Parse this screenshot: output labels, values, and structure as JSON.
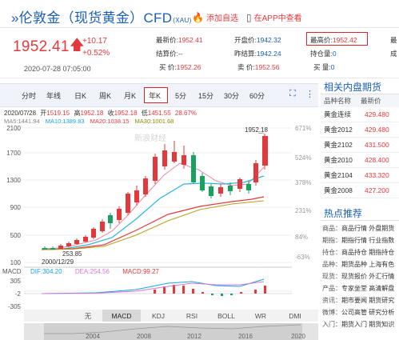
{
  "header": {
    "title": "»伦敦金（现货黄金）CFD",
    "title_sub": "(XAU)",
    "add_watch": "添加自选",
    "open_app": "在APP中查看"
  },
  "quote": {
    "price": "1952.41",
    "change": "+10.17",
    "change_pct": "+0.52%",
    "datetime": "2020-07-28 07:05:00",
    "fields": {
      "latest_label": "最新价:",
      "latest": "1952.41",
      "open_label": "开盘价:",
      "open": "1942.32",
      "high_label": "最高价:",
      "high": "1952.42",
      "settle_label": "结算价:",
      "settle": "--",
      "prev_settle_label": "昨结算:",
      "prev_settle": "1942.24",
      "position_label": "持仓量:",
      "position": "0",
      "buy_label": "买 价:",
      "buy": "1952.26",
      "sell_label": "卖 价:",
      "sell": "1952.56",
      "buy_vol_label": "买 量:",
      "buy_vol": "0",
      "cut_a": "最",
      "cut_b": "成"
    }
  },
  "tabs": [
    "分时",
    "年线",
    "日K",
    "周K",
    "月K",
    "年K",
    "5分",
    "15分",
    "30分",
    "60分"
  ],
  "chart_info": {
    "date": "2020/07/28",
    "open_label": "开",
    "open": "1519.15",
    "high_label": "高",
    "high": "1952.18",
    "low_label": "收",
    "low": "1952.18",
    "close_label": "低",
    "close": "1451.55",
    "pct": "28.67%",
    "ma5_label": "MA5:",
    "ma5": "1441.94",
    "ma10_label": "MA10:",
    "ma10": "1389.83",
    "ma20_label": "MA20:",
    "ma20": "1038.15",
    "ma30_label": "MA30:",
    "ma30": "1001.68",
    "y_ticks": [
      "2100",
      "1700",
      "1300",
      "900",
      "500",
      "100"
    ],
    "pct_ticks": [
      "671%",
      "524%",
      "378%",
      "231%",
      "84%",
      "-63%"
    ],
    "max_label": "1952.18",
    "min_label": "253.85",
    "min_date": "2000/12/29",
    "watermark": "新浪财经",
    "macd_title": "MACD",
    "dif_label": "DIF:",
    "dif": "304.20",
    "dea_label": "DEA:",
    "dea": "254.56",
    "macd_label": "MACD:",
    "macd": "99.27",
    "macd_ticks": [
      "305",
      "-2",
      "-305"
    ],
    "indicator_tabs": [
      "无",
      "MACD",
      "KDJ",
      "RSI",
      "BOLL",
      "WR",
      "DMI"
    ],
    "years": [
      "2004",
      "2008",
      "2012",
      "2016",
      "2020"
    ]
  },
  "right_panel": {
    "title": "相关内盘期货",
    "col_name": "品种名称",
    "col_price": "最新价",
    "rows": [
      {
        "name": "黄金连续",
        "price": "429.480"
      },
      {
        "name": "黄金2012",
        "price": "429.480"
      },
      {
        "name": "黄金2102",
        "price": "431.500"
      },
      {
        "name": "黄金2010",
        "price": "428.400"
      },
      {
        "name": "黄金2104",
        "price": "433.320"
      },
      {
        "name": "黄金2008",
        "price": "427.200"
      }
    ],
    "hot_title": "热点推荐",
    "hot": [
      {
        "k": "商品：",
        "v": "商品行情 外盘期货"
      },
      {
        "k": "期指：",
        "v": "期指行情 行业指数"
      },
      {
        "k": "持仓：",
        "v": "商品持仓 期指持仓"
      },
      {
        "k": "品种：",
        "v": "期货品种 上海有色"
      },
      {
        "k": "现货：",
        "v": "现货报价 外汇行情"
      },
      {
        "k": "产品：",
        "v": "专家坐堂 高清解盘"
      },
      {
        "k": "资讯：",
        "v": "期市要闻 期货研究"
      },
      {
        "k": "微博：",
        "v": "公司高管 研究分析"
      },
      {
        "k": "入门：",
        "v": "期货入门 期货知识"
      }
    ]
  }
}
